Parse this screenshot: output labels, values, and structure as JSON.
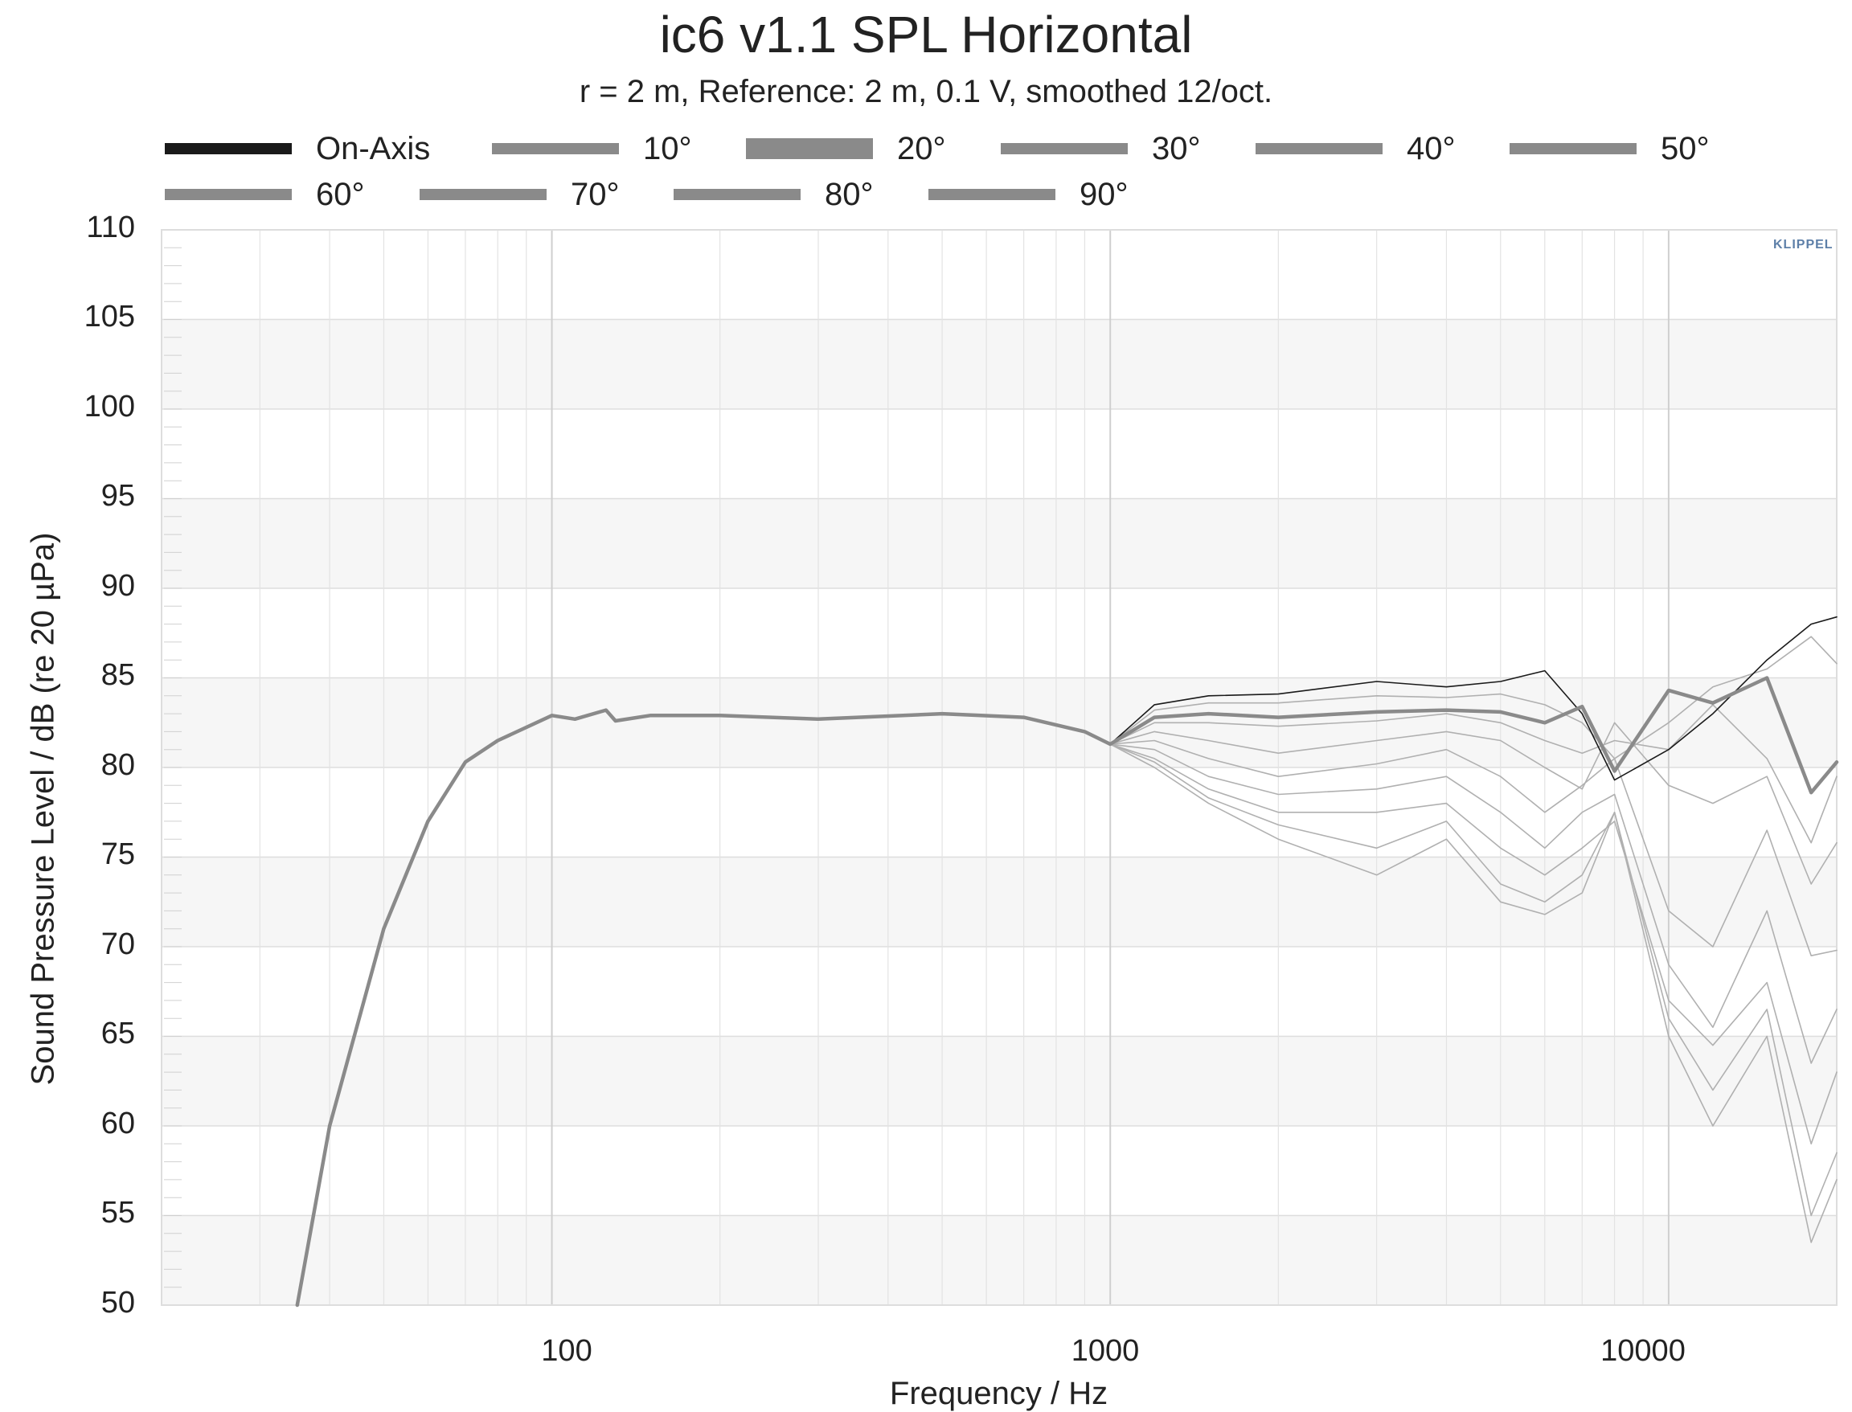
{
  "title": "ic6 v1.1 SPL Horizontal",
  "subtitle": "r = 2 m,  Reference: 2 m, 0.1 V, smoothed 12/oct.",
  "logo_text": "KLIPPEL",
  "chart_data": {
    "type": "line",
    "title": "ic6 v1.1 SPL Horizontal",
    "subtitle": "r = 2 m,  Reference: 2 m, 0.1 V, smoothed 12/oct.",
    "xlabel": "Frequency / Hz",
    "ylabel": "Sound Pressure Level / dB (re 20 µPa)",
    "x_scale": "log",
    "xlim": [
      20,
      20000
    ],
    "ylim": [
      50,
      110
    ],
    "x_ticks": [
      "100",
      "1000",
      "10000"
    ],
    "y_ticks": [
      "110",
      "105",
      "100",
      "95",
      "90",
      "85",
      "80",
      "75",
      "70",
      "65",
      "60",
      "55",
      "50"
    ],
    "grid": true,
    "legend_position": "top",
    "colors": {
      "on_axis": "#1a1a1a",
      "off_axis": "#8a8a8a",
      "faint_curves": "#b0b0b0",
      "band": "#f6f6f6",
      "grid": "#dddddd"
    },
    "series": [
      {
        "name": "On-Axis",
        "x": [
          35,
          40,
          50,
          60,
          70,
          80,
          100,
          110,
          125,
          130,
          150,
          200,
          300,
          500,
          700,
          900,
          1000,
          1200,
          1500,
          2000,
          3000,
          4000,
          5000,
          6000,
          7000,
          8000,
          10000,
          12000,
          15000,
          18000,
          20000
        ],
        "y": [
          50,
          60,
          71,
          77,
          80.3,
          81.5,
          82.9,
          82.7,
          83.2,
          82.6,
          82.9,
          82.9,
          82.7,
          83.0,
          82.8,
          82.0,
          81.3,
          83.5,
          84.0,
          84.1,
          84.8,
          84.5,
          84.8,
          85.4,
          83.0,
          79.3,
          81.0,
          83.0,
          86.0,
          88.0,
          88.4
        ]
      },
      {
        "name": "10°",
        "x": [
          35,
          40,
          50,
          60,
          70,
          80,
          100,
          110,
          125,
          130,
          150,
          200,
          300,
          500,
          700,
          900,
          1000,
          1200,
          1500,
          2000,
          3000,
          4000,
          5000,
          6000,
          7000,
          8000,
          10000,
          12000,
          15000,
          18000,
          20000
        ],
        "y": [
          50,
          60,
          71,
          77,
          80.3,
          81.5,
          82.9,
          82.7,
          83.2,
          82.6,
          82.9,
          82.9,
          82.7,
          83.0,
          82.8,
          82.0,
          81.3,
          83.2,
          83.6,
          83.6,
          84.0,
          83.9,
          84.1,
          83.5,
          82.5,
          80.5,
          82.5,
          84.5,
          85.5,
          87.3,
          85.8
        ]
      },
      {
        "name": "20°",
        "x": [
          35,
          40,
          50,
          60,
          70,
          80,
          100,
          110,
          125,
          130,
          150,
          200,
          300,
          500,
          700,
          900,
          1000,
          1200,
          1500,
          2000,
          3000,
          4000,
          5000,
          6000,
          7000,
          8000,
          10000,
          12000,
          15000,
          18000,
          20000
        ],
        "y": [
          50,
          60,
          71,
          77,
          80.3,
          81.5,
          82.9,
          82.7,
          83.2,
          82.6,
          82.9,
          82.9,
          82.7,
          83.0,
          82.8,
          82.0,
          81.3,
          82.8,
          83.0,
          82.8,
          83.1,
          83.2,
          83.1,
          82.5,
          83.4,
          79.8,
          84.3,
          83.6,
          85.0,
          78.6,
          80.3
        ]
      },
      {
        "name": "30°",
        "x": [
          35,
          40,
          50,
          60,
          70,
          80,
          100,
          110,
          125,
          130,
          150,
          200,
          300,
          500,
          700,
          900,
          1000,
          1200,
          1500,
          2000,
          3000,
          4000,
          5000,
          6000,
          7000,
          8000,
          10000,
          12000,
          15000,
          18000,
          20000
        ],
        "y": [
          50,
          60,
          71,
          77,
          80.3,
          81.5,
          82.9,
          82.7,
          83.2,
          82.6,
          82.9,
          82.9,
          82.7,
          83.0,
          82.8,
          82.0,
          81.3,
          82.5,
          82.5,
          82.3,
          82.6,
          83.0,
          82.5,
          81.5,
          80.8,
          81.5,
          81.0,
          83.5,
          80.5,
          75.8,
          79.5
        ]
      },
      {
        "name": "40°",
        "x": [
          35,
          40,
          50,
          60,
          70,
          80,
          100,
          110,
          125,
          130,
          150,
          200,
          300,
          500,
          700,
          900,
          1000,
          1200,
          1500,
          2000,
          3000,
          4000,
          5000,
          6000,
          7000,
          8000,
          10000,
          12000,
          15000,
          18000,
          20000
        ],
        "y": [
          50,
          60,
          71,
          77,
          80.3,
          81.5,
          82.9,
          82.7,
          83.2,
          82.6,
          82.9,
          82.9,
          82.7,
          83.0,
          82.8,
          82.0,
          81.3,
          82.0,
          81.5,
          80.8,
          81.5,
          82.0,
          81.5,
          80.0,
          78.8,
          82.5,
          79.0,
          78.0,
          79.5,
          73.5,
          75.8
        ]
      },
      {
        "name": "50°",
        "x": [
          35,
          40,
          50,
          60,
          70,
          80,
          100,
          110,
          125,
          130,
          150,
          200,
          300,
          500,
          700,
          900,
          1000,
          1200,
          1500,
          2000,
          3000,
          4000,
          5000,
          6000,
          7000,
          8000,
          10000,
          12000,
          15000,
          18000,
          20000
        ],
        "y": [
          50,
          60,
          71,
          77,
          80.3,
          81.5,
          82.9,
          82.7,
          83.2,
          82.6,
          82.9,
          82.9,
          82.7,
          83.0,
          82.8,
          82.0,
          81.3,
          81.5,
          80.5,
          79.5,
          80.2,
          81.0,
          79.5,
          77.5,
          79.0,
          80.5,
          72.0,
          70.0,
          76.5,
          69.5,
          69.8
        ]
      },
      {
        "name": "60°",
        "x": [
          35,
          40,
          50,
          60,
          70,
          80,
          100,
          110,
          125,
          130,
          150,
          200,
          300,
          500,
          700,
          900,
          1000,
          1200,
          1500,
          2000,
          3000,
          4000,
          5000,
          6000,
          7000,
          8000,
          10000,
          12000,
          15000,
          18000,
          20000
        ],
        "y": [
          50,
          60,
          71,
          77,
          80.3,
          81.5,
          82.9,
          82.7,
          83.2,
          82.6,
          82.9,
          82.9,
          82.7,
          83.0,
          82.8,
          82.0,
          81.3,
          81.0,
          79.5,
          78.5,
          78.8,
          79.5,
          77.5,
          75.5,
          77.5,
          78.5,
          69.0,
          65.5,
          72.0,
          63.5,
          66.5
        ]
      },
      {
        "name": "70°",
        "x": [
          35,
          40,
          50,
          60,
          70,
          80,
          100,
          110,
          125,
          130,
          150,
          200,
          300,
          500,
          700,
          900,
          1000,
          1200,
          1500,
          2000,
          3000,
          4000,
          5000,
          6000,
          7000,
          8000,
          10000,
          12000,
          15000,
          18000,
          20000
        ],
        "y": [
          50,
          60,
          71,
          77,
          80.3,
          81.5,
          82.9,
          82.7,
          83.2,
          82.6,
          82.9,
          82.9,
          82.7,
          83.0,
          82.8,
          82.0,
          81.3,
          80.5,
          78.8,
          77.5,
          77.5,
          78.0,
          75.5,
          74.0,
          75.5,
          77.0,
          67.0,
          64.5,
          68.0,
          59.0,
          63.0
        ]
      },
      {
        "name": "80°",
        "x": [
          35,
          40,
          50,
          60,
          70,
          80,
          100,
          110,
          125,
          130,
          150,
          200,
          300,
          500,
          700,
          900,
          1000,
          1200,
          1500,
          2000,
          3000,
          4000,
          5000,
          6000,
          7000,
          8000,
          10000,
          12000,
          15000,
          18000,
          20000
        ],
        "y": [
          50,
          60,
          71,
          77,
          80.3,
          81.5,
          82.9,
          82.7,
          83.2,
          82.6,
          82.9,
          82.9,
          82.7,
          83.0,
          82.8,
          82.0,
          81.3,
          80.3,
          78.3,
          76.8,
          75.5,
          77.0,
          73.5,
          72.5,
          74.0,
          77.5,
          66.0,
          62.0,
          66.5,
          55.0,
          58.5
        ]
      },
      {
        "name": "90°",
        "x": [
          35,
          40,
          50,
          60,
          70,
          80,
          100,
          110,
          125,
          130,
          150,
          200,
          300,
          500,
          700,
          900,
          1000,
          1200,
          1500,
          2000,
          3000,
          4000,
          5000,
          6000,
          7000,
          8000,
          10000,
          12000,
          15000,
          18000,
          20000
        ],
        "y": [
          50,
          60,
          71,
          77,
          80.3,
          81.5,
          82.9,
          82.7,
          83.2,
          82.6,
          82.9,
          82.9,
          82.7,
          83.0,
          82.8,
          82.0,
          81.3,
          80.0,
          78.0,
          76.0,
          74.0,
          76.0,
          72.5,
          71.8,
          73.0,
          77.5,
          65.0,
          60.0,
          65.0,
          53.5,
          57.0
        ]
      }
    ]
  }
}
